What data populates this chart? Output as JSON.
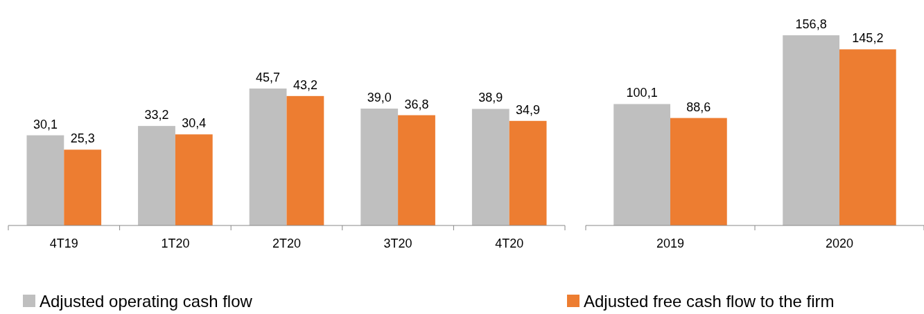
{
  "chart_data": [
    {
      "type": "bar",
      "categories": [
        "4T19",
        "1T20",
        "2T20",
        "3T20",
        "4T20"
      ],
      "legend": "bottom",
      "series": [
        {
          "name": "Adjusted operating cash flow",
          "color": "#bfbfbf",
          "values": [
            30.1,
            33.2,
            45.7,
            39.0,
            38.9
          ],
          "value_labels": [
            "30,1",
            "33,2",
            "45,7",
            "39,0",
            "38,9"
          ]
        },
        {
          "name": "Adjusted free cash flow to the firm",
          "color": "#ed7d31",
          "values": [
            25.3,
            30.4,
            43.2,
            36.8,
            34.9
          ],
          "value_labels": [
            "25,3",
            "30,4",
            "43,2",
            "36,8",
            "34,9"
          ]
        }
      ]
    },
    {
      "type": "bar",
      "categories": [
        "2019",
        "2020"
      ],
      "series": [
        {
          "color": "#bfbfbf",
          "values": [
            100.1,
            156.8
          ],
          "value_labels": [
            "100,1",
            "156,8"
          ]
        },
        {
          "color": "#ed7d31",
          "values": [
            88.6,
            145.2
          ],
          "value_labels": [
            "88,6",
            "145,2"
          ]
        }
      ]
    }
  ]
}
